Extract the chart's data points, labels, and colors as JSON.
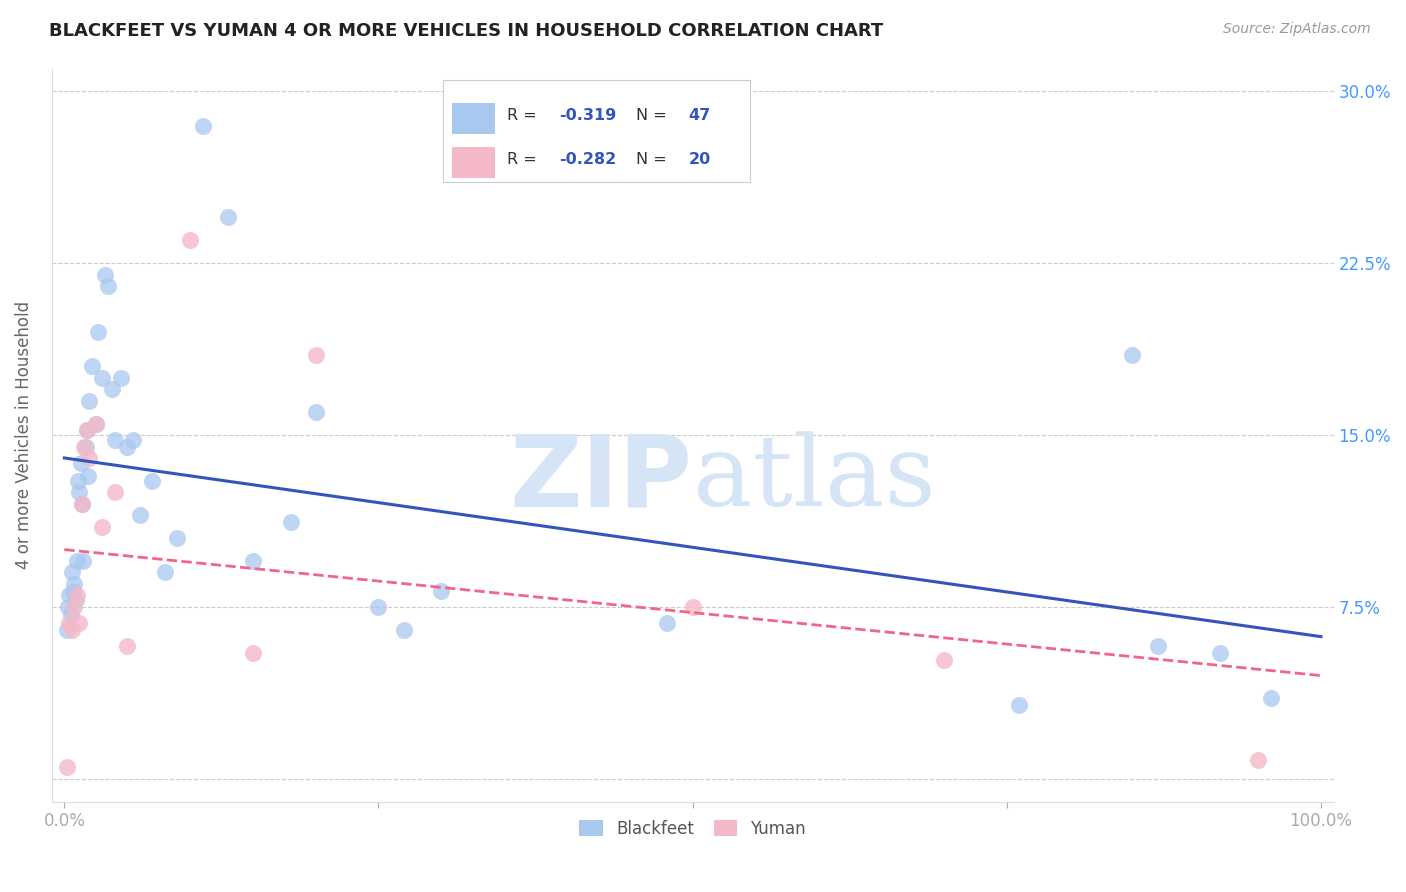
{
  "title": "BLACKFEET VS YUMAN 4 OR MORE VEHICLES IN HOUSEHOLD CORRELATION CHART",
  "source": "Source: ZipAtlas.com",
  "ylabel": "4 or more Vehicles in Household",
  "xlabel": "",
  "xlim": [
    -0.01,
    1.01
  ],
  "ylim": [
    -0.01,
    0.31
  ],
  "xticks": [
    0.0,
    0.25,
    0.5,
    0.75,
    1.0
  ],
  "xticklabels": [
    "0.0%",
    "",
    "",
    "",
    "100.0%"
  ],
  "yticks": [
    0.0,
    0.075,
    0.15,
    0.225,
    0.3
  ],
  "yticklabels_right": [
    "",
    "7.5%",
    "15.0%",
    "22.5%",
    "30.0%"
  ],
  "blackfeet_color": "#A8C8F0",
  "yuman_color": "#F5B8C8",
  "trend_blue": "#3355BB",
  "trend_pink": "#EE6688",
  "blackfeet_x": [
    0.002,
    0.003,
    0.004,
    0.005,
    0.006,
    0.007,
    0.008,
    0.009,
    0.01,
    0.011,
    0.012,
    0.013,
    0.014,
    0.015,
    0.017,
    0.018,
    0.019,
    0.02,
    0.022,
    0.025,
    0.027,
    0.03,
    0.032,
    0.035,
    0.038,
    0.04,
    0.045,
    0.05,
    0.055,
    0.06,
    0.07,
    0.08,
    0.09,
    0.11,
    0.13,
    0.15,
    0.18,
    0.2,
    0.25,
    0.27,
    0.3,
    0.48,
    0.76,
    0.85,
    0.87,
    0.92,
    0.96
  ],
  "blackfeet_y": [
    0.065,
    0.075,
    0.08,
    0.072,
    0.09,
    0.082,
    0.085,
    0.078,
    0.095,
    0.13,
    0.125,
    0.138,
    0.12,
    0.095,
    0.145,
    0.152,
    0.132,
    0.165,
    0.18,
    0.155,
    0.195,
    0.175,
    0.22,
    0.215,
    0.17,
    0.148,
    0.175,
    0.145,
    0.148,
    0.115,
    0.13,
    0.09,
    0.105,
    0.285,
    0.245,
    0.095,
    0.112,
    0.16,
    0.075,
    0.065,
    0.082,
    0.068,
    0.032,
    0.185,
    0.058,
    0.055,
    0.035
  ],
  "yuman_x": [
    0.002,
    0.004,
    0.006,
    0.008,
    0.01,
    0.012,
    0.014,
    0.016,
    0.018,
    0.02,
    0.025,
    0.03,
    0.04,
    0.05,
    0.1,
    0.15,
    0.2,
    0.5,
    0.7,
    0.95
  ],
  "yuman_y": [
    0.005,
    0.068,
    0.065,
    0.075,
    0.08,
    0.068,
    0.12,
    0.145,
    0.152,
    0.14,
    0.155,
    0.11,
    0.125,
    0.058,
    0.235,
    0.055,
    0.185,
    0.075,
    0.052,
    0.008
  ],
  "trend_blackfeet_x0": 0.0,
  "trend_blackfeet_y0": 0.14,
  "trend_blackfeet_x1": 1.0,
  "trend_blackfeet_y1": 0.062,
  "trend_yuman_x0": 0.0,
  "trend_yuman_y0": 0.1,
  "trend_yuman_x1": 1.0,
  "trend_yuman_y1": 0.045,
  "watermark_zip": "ZIP",
  "watermark_atlas": "atlas",
  "background_color": "#FFFFFF",
  "grid_color": "#CCCCCC",
  "legend_box_color": "#FFFFFF",
  "legend_border_color": "#CCCCCC",
  "legend_text_color": "#333333",
  "legend_value_color": "#3355BB",
  "legend_r1": "-0.319",
  "legend_n1": "47",
  "legend_r2": "-0.282",
  "legend_n2": "20",
  "title_fontsize": 13,
  "source_fontsize": 10,
  "tick_fontsize": 12,
  "ylabel_fontsize": 12,
  "right_tick_color": "#4499FF"
}
